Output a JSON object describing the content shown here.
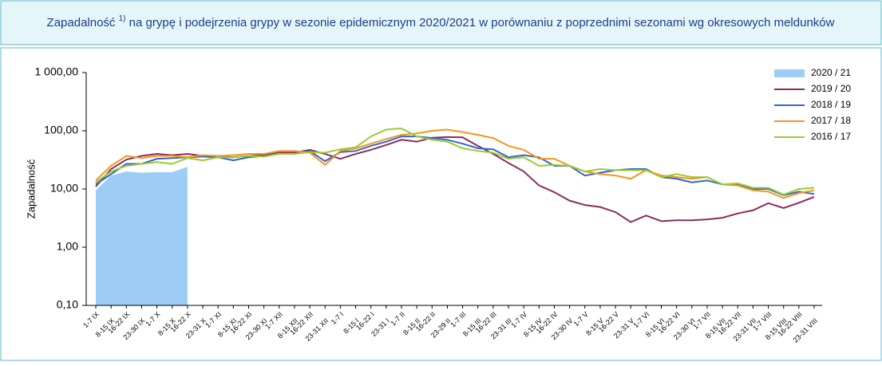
{
  "chart_data": {
    "type": "line",
    "title": [
      "Zapadalność ",
      "1)",
      " na grypę i podejrzenia grypy w sezonie epidemicznym 2020/2021 w porównaniu z poprzednimi sezonami wg okresowych meldunków"
    ],
    "ylabel": "Zapadalność",
    "log_y": true,
    "grid": false,
    "legend": "top-right",
    "categories": [
      "1-7 IX",
      "8-15 IX",
      "16-22 IX",
      "23-30 IX",
      "1-7 X",
      "8-15 X",
      "16-22 X",
      "23-31 X",
      "1-7 XI",
      "8-15 XI",
      "16-22 XI",
      "23-30 XI",
      "1-7 XII",
      "8-15 XII",
      "16-22 XII",
      "23-31 XII",
      "1-7 I",
      "8-15 I",
      "16-22 I",
      "23-31 I",
      "1-7 II",
      "8-15 II",
      "16-22 II",
      "23-29 II",
      "1-7 III",
      "8-15 III",
      "16-22 III",
      "23-31 III",
      "1-7 IV",
      "8-15 IV",
      "16-22 IV",
      "23-30 IV",
      "1-7 V",
      "8-15 V",
      "16-22 V",
      "23-31 V",
      "1-7 VI",
      "8-15 VI",
      "16-22 VI",
      "23-30 VI",
      "1-7 VII",
      "8-15 VII",
      "16-22 VII",
      "23-31 VII",
      "1-7 VIII",
      "8-15 VIII",
      "16-22 VIII",
      "23-31 VIII"
    ],
    "ylim": [
      0.1,
      1000
    ],
    "yticks": [
      {
        "value": 0.1,
        "label": "0,10"
      },
      {
        "value": 1,
        "label": "1,00"
      },
      {
        "value": 10,
        "label": "10,00"
      },
      {
        "value": 100,
        "label": "100,00"
      },
      {
        "value": 1000,
        "label": "1 000,00"
      }
    ],
    "series": [
      {
        "name": "2020 / 21",
        "color": "#9dcdf5",
        "area": true,
        "values": [
          9.5,
          17,
          20,
          19,
          19.5,
          19.5,
          24,
          null,
          null,
          null,
          null,
          null,
          null,
          null,
          null,
          null,
          null,
          null,
          null,
          null,
          null,
          null,
          null,
          null,
          null,
          null,
          null,
          null,
          null,
          null,
          null,
          null,
          null,
          null,
          null,
          null,
          null,
          null,
          null,
          null,
          null,
          null,
          null,
          null,
          null,
          null,
          null,
          null
        ]
      },
      {
        "name": "2019 / 20",
        "color": "#8b2d5c",
        "values": [
          11,
          22,
          32,
          37,
          40,
          38,
          40,
          37,
          36,
          35,
          37,
          38,
          42,
          42,
          47,
          40,
          33,
          40,
          47,
          57,
          70,
          65,
          76,
          78,
          77,
          55,
          40,
          28,
          20,
          11.5,
          8.8,
          6.3,
          5.3,
          4.9,
          4.0,
          2.7,
          3.5,
          2.8,
          2.9,
          2.9,
          3.0,
          3.2,
          3.8,
          4.3,
          5.7,
          4.7,
          5.8,
          7.3
        ]
      },
      {
        "name": "2018 / 19",
        "color": "#3366cc",
        "values": [
          12,
          18,
          27,
          27,
          33,
          34,
          35,
          36,
          35,
          31,
          35,
          37,
          40,
          40,
          45,
          30,
          43,
          45,
          55,
          65,
          80,
          80,
          75,
          70,
          60,
          50,
          48,
          35,
          38,
          35,
          25,
          25,
          17,
          19,
          21,
          22,
          22,
          16,
          15,
          13,
          14,
          12,
          12,
          10,
          10,
          7.8,
          9,
          8.2
        ]
      },
      {
        "name": "2017 / 18",
        "color": "#f7941d",
        "values": [
          14,
          25,
          37,
          34,
          37,
          37,
          35,
          38,
          37,
          38,
          40,
          40,
          45,
          45,
          42,
          26,
          45,
          50,
          60,
          72,
          85,
          90,
          100,
          105,
          95,
          85,
          75,
          55,
          47,
          33,
          33,
          25,
          20,
          18,
          17,
          15,
          21,
          17,
          16,
          15,
          16,
          12,
          11.5,
          9.5,
          9,
          7,
          8.5,
          9.5
        ]
      },
      {
        "name": "2016 / 17",
        "color": "#99cc33",
        "values": [
          13,
          20,
          25,
          27,
          29,
          27,
          34,
          31,
          35,
          35,
          37,
          36,
          40,
          40,
          43,
          42,
          48,
          52,
          80,
          105,
          110,
          80,
          70,
          65,
          50,
          45,
          42,
          33,
          35,
          25,
          26,
          25,
          20,
          22,
          21,
          21,
          21,
          16,
          18,
          16,
          16,
          12,
          12.5,
          10.5,
          10.5,
          8,
          10,
          10.5
        ]
      }
    ]
  }
}
